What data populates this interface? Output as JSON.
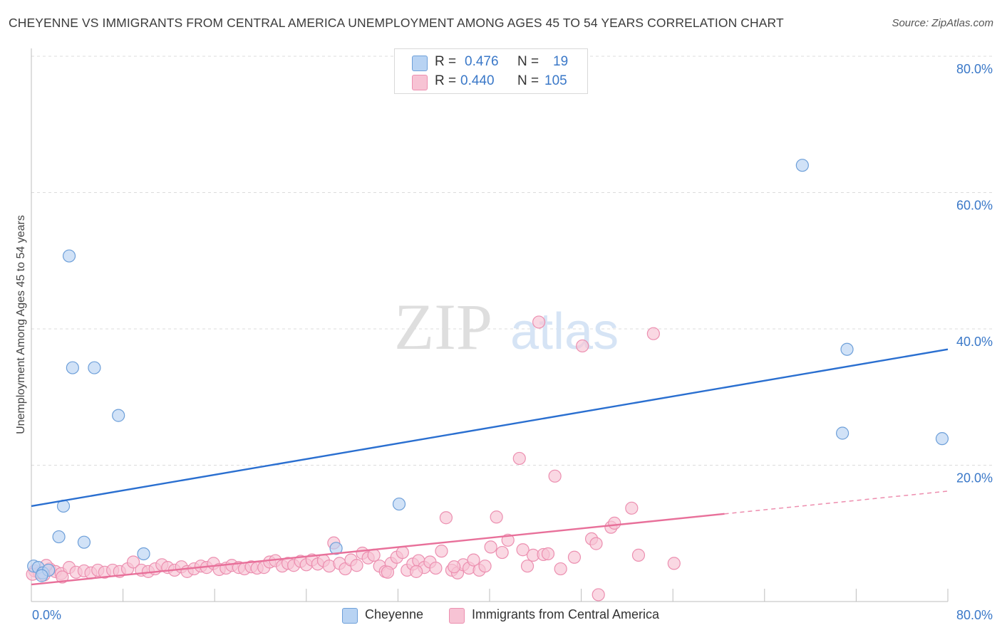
{
  "title": "CHEYENNE VS IMMIGRANTS FROM CENTRAL AMERICA UNEMPLOYMENT AMONG AGES 45 TO 54 YEARS CORRELATION CHART",
  "source": "Source: ZipAtlas.com",
  "watermark": {
    "zip": "ZIP",
    "atlas": "atlas"
  },
  "legend": {
    "r_label": "R =",
    "n_label": "N =",
    "rows": [
      {
        "r": "0.476",
        "n": "19"
      },
      {
        "r": "0.440",
        "n": "105"
      }
    ]
  },
  "colors": {
    "cheyenne_fill": "#b8d3f3",
    "cheyenne_stroke": "#6d9fd9",
    "cheyenne_line": "#2a6fd0",
    "immigrants_fill": "#f7c3d4",
    "immigrants_stroke": "#ec8fb0",
    "immigrants_line": "#e8709a",
    "axis_tick": "#3a78c8",
    "grid": "#dcdcdc"
  },
  "chart_data": {
    "type": "scatter",
    "title": "CHEYENNE VS IMMIGRANTS FROM CENTRAL AMERICA UNEMPLOYMENT AMONG AGES 45 TO 54 YEARS CORRELATION CHART",
    "xlabel": "",
    "ylabel": "Unemployment Among Ages 45 to 54 years",
    "xlim": [
      0,
      80
    ],
    "ylim": [
      0,
      80
    ],
    "x_tick_labels": [
      "0.0%",
      "80.0%"
    ],
    "y_tick_labels": [
      "20.0%",
      "40.0%",
      "60.0%",
      "80.0%"
    ],
    "y_ticks": [
      20,
      40,
      60,
      80
    ],
    "grid": true,
    "legend_position": "top-center",
    "series": [
      {
        "name": "Cheyenne",
        "r": 0.476,
        "n": 19,
        "trend": {
          "x0": 0,
          "y0": 14.0,
          "x1": 80,
          "y1": 37.0,
          "dashed_from": null
        },
        "points": [
          [
            0.2,
            5.2
          ],
          [
            0.6,
            5.0
          ],
          [
            1.0,
            4.2
          ],
          [
            1.5,
            4.6
          ],
          [
            0.9,
            3.8
          ],
          [
            3.3,
            50.7
          ],
          [
            3.6,
            34.3
          ],
          [
            5.5,
            34.3
          ],
          [
            7.6,
            27.3
          ],
          [
            2.8,
            14.0
          ],
          [
            4.6,
            8.7
          ],
          [
            2.4,
            9.5
          ],
          [
            9.8,
            7.0
          ],
          [
            26.6,
            7.8
          ],
          [
            32.1,
            14.3
          ],
          [
            67.3,
            64.0
          ],
          [
            71.2,
            37.0
          ],
          [
            70.8,
            24.7
          ],
          [
            79.5,
            23.9
          ]
        ]
      },
      {
        "name": "Immigrants from Central America",
        "r": 0.44,
        "n": 105,
        "trend": {
          "x0": 0,
          "y0": 2.5,
          "x1": 80,
          "y1": 16.2,
          "dashed_from": 60.5
        },
        "points": [
          [
            0.3,
            4.5
          ],
          [
            0.7,
            4.2
          ],
          [
            1.1,
            3.9
          ],
          [
            1.6,
            4.8
          ],
          [
            2.1,
            4.4
          ],
          [
            2.6,
            4.1
          ],
          [
            3.3,
            5.0
          ],
          [
            3.9,
            4.3
          ],
          [
            4.6,
            4.5
          ],
          [
            5.2,
            4.2
          ],
          [
            5.8,
            4.6
          ],
          [
            6.4,
            4.3
          ],
          [
            7.1,
            4.6
          ],
          [
            7.7,
            4.4
          ],
          [
            8.4,
            4.8
          ],
          [
            8.9,
            5.8
          ],
          [
            9.6,
            4.6
          ],
          [
            10.2,
            4.4
          ],
          [
            10.8,
            4.8
          ],
          [
            11.4,
            5.4
          ],
          [
            11.9,
            5.0
          ],
          [
            12.5,
            4.6
          ],
          [
            13.1,
            5.1
          ],
          [
            13.6,
            4.4
          ],
          [
            14.2,
            4.8
          ],
          [
            14.8,
            5.2
          ],
          [
            15.3,
            5.0
          ],
          [
            15.9,
            5.6
          ],
          [
            16.4,
            4.7
          ],
          [
            17.0,
            4.9
          ],
          [
            17.5,
            5.3
          ],
          [
            18.1,
            5.0
          ],
          [
            18.6,
            4.8
          ],
          [
            19.2,
            5.1
          ],
          [
            19.7,
            4.9
          ],
          [
            20.3,
            5.0
          ],
          [
            20.8,
            5.8
          ],
          [
            21.3,
            6.0
          ],
          [
            21.9,
            5.2
          ],
          [
            22.4,
            5.6
          ],
          [
            22.9,
            5.3
          ],
          [
            23.5,
            5.9
          ],
          [
            24.0,
            5.4
          ],
          [
            24.5,
            6.1
          ],
          [
            25.0,
            5.5
          ],
          [
            25.5,
            6.0
          ],
          [
            26.0,
            5.2
          ],
          [
            26.4,
            8.6
          ],
          [
            26.9,
            5.6
          ],
          [
            27.4,
            4.8
          ],
          [
            27.9,
            6.1
          ],
          [
            28.4,
            5.3
          ],
          [
            28.9,
            7.1
          ],
          [
            29.4,
            6.4
          ],
          [
            29.9,
            6.8
          ],
          [
            30.4,
            5.2
          ],
          [
            30.9,
            4.4
          ],
          [
            31.4,
            5.6
          ],
          [
            31.9,
            6.5
          ],
          [
            32.4,
            7.2
          ],
          [
            32.8,
            4.6
          ],
          [
            33.3,
            5.5
          ],
          [
            33.8,
            6.0
          ],
          [
            34.3,
            5.0
          ],
          [
            34.8,
            5.8
          ],
          [
            35.3,
            4.9
          ],
          [
            35.8,
            7.4
          ],
          [
            36.2,
            12.3
          ],
          [
            36.7,
            4.6
          ],
          [
            37.2,
            4.2
          ],
          [
            37.7,
            5.4
          ],
          [
            38.2,
            4.9
          ],
          [
            38.6,
            6.1
          ],
          [
            39.1,
            4.6
          ],
          [
            39.6,
            5.2
          ],
          [
            40.1,
            8.0
          ],
          [
            40.6,
            12.4
          ],
          [
            41.1,
            7.2
          ],
          [
            41.6,
            9.0
          ],
          [
            42.6,
            21.0
          ],
          [
            42.9,
            7.6
          ],
          [
            43.3,
            5.2
          ],
          [
            43.8,
            6.8
          ],
          [
            44.3,
            41.0
          ],
          [
            44.7,
            6.9
          ],
          [
            45.1,
            7.0
          ],
          [
            45.7,
            18.4
          ],
          [
            46.2,
            4.8
          ],
          [
            47.4,
            6.5
          ],
          [
            48.1,
            37.5
          ],
          [
            48.9,
            9.2
          ],
          [
            49.3,
            8.5
          ],
          [
            50.6,
            10.9
          ],
          [
            50.9,
            11.5
          ],
          [
            52.4,
            13.7
          ],
          [
            53.0,
            6.8
          ],
          [
            54.3,
            39.3
          ],
          [
            56.1,
            5.6
          ],
          [
            49.5,
            1.0
          ],
          [
            36.9,
            5.1
          ],
          [
            33.6,
            4.4
          ],
          [
            31.1,
            4.3
          ],
          [
            2.7,
            3.6
          ],
          [
            0.1,
            4.0
          ],
          [
            1.3,
            5.3
          ]
        ]
      }
    ]
  },
  "bottom_legend": {
    "cheyenne": "Cheyenne",
    "immigrants": "Immigrants from Central America"
  }
}
